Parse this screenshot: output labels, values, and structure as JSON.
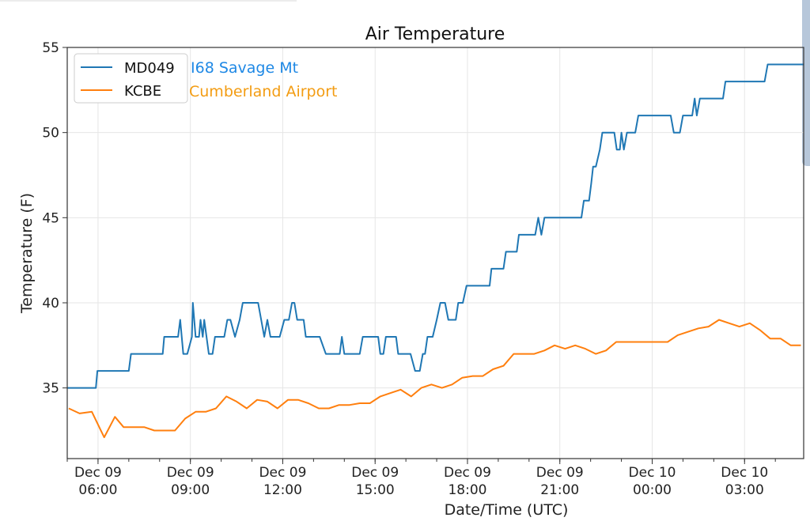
{
  "chart_data": {
    "type": "line",
    "title": "Air Temperature",
    "xlabel": "Date/Time (UTC)",
    "ylabel": "Temperature (F)",
    "x_units": "hours since Dec 09 00:00 UTC",
    "xlim": [
      5.0,
      28.92
    ],
    "ylim": [
      30.85,
      55
    ],
    "grid": true,
    "legend_position": "top-left",
    "yticks": [
      35,
      40,
      45,
      50,
      55
    ],
    "xticks": [
      {
        "x": 6,
        "label_line1": "Dec 09",
        "label_line2": "06:00"
      },
      {
        "x": 9,
        "label_line1": "Dec 09",
        "label_line2": "09:00"
      },
      {
        "x": 12,
        "label_line1": "Dec 09",
        "label_line2": "12:00"
      },
      {
        "x": 15,
        "label_line1": "Dec 09",
        "label_line2": "15:00"
      },
      {
        "x": 18,
        "label_line1": "Dec 09",
        "label_line2": "18:00"
      },
      {
        "x": 21,
        "label_line1": "Dec 09",
        "label_line2": "21:00"
      },
      {
        "x": 24,
        "label_line1": "Dec 10",
        "label_line2": "00:00"
      },
      {
        "x": 27,
        "label_line1": "Dec 10",
        "label_line2": "03:00"
      }
    ],
    "series": [
      {
        "name": "MD049",
        "annotation": "I68 Savage Mt",
        "color": "#1f77b4",
        "annotation_color": "#1e88e5",
        "points": [
          [
            5.0,
            35
          ],
          [
            5.93,
            35
          ],
          [
            5.98,
            36
          ],
          [
            7.0,
            36
          ],
          [
            7.07,
            37
          ],
          [
            8.1,
            37
          ],
          [
            8.15,
            38
          ],
          [
            8.6,
            38
          ],
          [
            8.67,
            39
          ],
          [
            8.77,
            37
          ],
          [
            8.9,
            37
          ],
          [
            9.05,
            38
          ],
          [
            9.08,
            40
          ],
          [
            9.17,
            38
          ],
          [
            9.28,
            38
          ],
          [
            9.33,
            39
          ],
          [
            9.4,
            38
          ],
          [
            9.45,
            39
          ],
          [
            9.6,
            37
          ],
          [
            9.72,
            37
          ],
          [
            9.8,
            38
          ],
          [
            10.1,
            38
          ],
          [
            10.2,
            39
          ],
          [
            10.3,
            39
          ],
          [
            10.45,
            38
          ],
          [
            10.6,
            39
          ],
          [
            10.7,
            40
          ],
          [
            11.2,
            40
          ],
          [
            11.3,
            39
          ],
          [
            11.4,
            38
          ],
          [
            11.5,
            39
          ],
          [
            11.6,
            38
          ],
          [
            11.9,
            38
          ],
          [
            12.05,
            39
          ],
          [
            12.2,
            39
          ],
          [
            12.3,
            40
          ],
          [
            12.38,
            40
          ],
          [
            12.47,
            39
          ],
          [
            12.68,
            39
          ],
          [
            12.75,
            38
          ],
          [
            13.2,
            38
          ],
          [
            13.4,
            37
          ],
          [
            13.85,
            37
          ],
          [
            13.92,
            38
          ],
          [
            14.0,
            37
          ],
          [
            14.5,
            37
          ],
          [
            14.6,
            38
          ],
          [
            15.1,
            38
          ],
          [
            15.17,
            37
          ],
          [
            15.27,
            37
          ],
          [
            15.35,
            38
          ],
          [
            15.68,
            38
          ],
          [
            15.75,
            37
          ],
          [
            16.15,
            37
          ],
          [
            16.3,
            36
          ],
          [
            16.45,
            36
          ],
          [
            16.55,
            37
          ],
          [
            16.62,
            37
          ],
          [
            16.7,
            38
          ],
          [
            16.87,
            38
          ],
          [
            17.0,
            39
          ],
          [
            17.12,
            40
          ],
          [
            17.27,
            40
          ],
          [
            17.38,
            39
          ],
          [
            17.62,
            39
          ],
          [
            17.7,
            40
          ],
          [
            17.85,
            40
          ],
          [
            17.97,
            41
          ],
          [
            18.5,
            41
          ],
          [
            18.72,
            41
          ],
          [
            18.78,
            42
          ],
          [
            19.0,
            42
          ],
          [
            19.17,
            42
          ],
          [
            19.25,
            43
          ],
          [
            19.6,
            43
          ],
          [
            19.67,
            44
          ],
          [
            20.2,
            44
          ],
          [
            20.3,
            45
          ],
          [
            20.4,
            44
          ],
          [
            20.5,
            45
          ],
          [
            21.7,
            45
          ],
          [
            21.78,
            46
          ],
          [
            21.95,
            46
          ],
          [
            22.02,
            47
          ],
          [
            22.08,
            48
          ],
          [
            22.17,
            48
          ],
          [
            22.3,
            49
          ],
          [
            22.38,
            50
          ],
          [
            22.77,
            50
          ],
          [
            22.85,
            49
          ],
          [
            22.95,
            49
          ],
          [
            23.0,
            50
          ],
          [
            23.08,
            49
          ],
          [
            23.18,
            50
          ],
          [
            23.45,
            50
          ],
          [
            23.55,
            51
          ],
          [
            24.6,
            51
          ],
          [
            24.7,
            50
          ],
          [
            24.9,
            50
          ],
          [
            25.0,
            51
          ],
          [
            25.3,
            51
          ],
          [
            25.38,
            52
          ],
          [
            25.45,
            51
          ],
          [
            25.55,
            52
          ],
          [
            26.3,
            52
          ],
          [
            26.38,
            53
          ],
          [
            27.65,
            53
          ],
          [
            27.75,
            54
          ],
          [
            28.92,
            54
          ]
        ]
      },
      {
        "name": "KCBE",
        "annotation": "Cumberland Airport",
        "color": "#ff7f0e",
        "annotation_color": "#f39c12",
        "points": [
          [
            5.05,
            33.8
          ],
          [
            5.4,
            33.5
          ],
          [
            5.8,
            33.6
          ],
          [
            6.2,
            32.1
          ],
          [
            6.55,
            33.3
          ],
          [
            6.83,
            32.7
          ],
          [
            7.5,
            32.7
          ],
          [
            7.83,
            32.5
          ],
          [
            8.5,
            32.5
          ],
          [
            8.83,
            33.2
          ],
          [
            9.17,
            33.6
          ],
          [
            9.5,
            33.6
          ],
          [
            9.83,
            33.8
          ],
          [
            10.17,
            34.5
          ],
          [
            10.5,
            34.2
          ],
          [
            10.83,
            33.8
          ],
          [
            11.17,
            34.3
          ],
          [
            11.5,
            34.2
          ],
          [
            11.83,
            33.8
          ],
          [
            12.17,
            34.3
          ],
          [
            12.5,
            34.3
          ],
          [
            12.83,
            34.1
          ],
          [
            13.17,
            33.8
          ],
          [
            13.5,
            33.8
          ],
          [
            13.83,
            34.0
          ],
          [
            14.17,
            34.0
          ],
          [
            14.5,
            34.1
          ],
          [
            14.83,
            34.1
          ],
          [
            15.17,
            34.5
          ],
          [
            15.5,
            34.7
          ],
          [
            15.83,
            34.9
          ],
          [
            16.17,
            34.5
          ],
          [
            16.5,
            35.0
          ],
          [
            16.83,
            35.2
          ],
          [
            17.17,
            35.0
          ],
          [
            17.5,
            35.2
          ],
          [
            17.83,
            35.6
          ],
          [
            18.17,
            35.7
          ],
          [
            18.5,
            35.7
          ],
          [
            18.83,
            36.1
          ],
          [
            19.17,
            36.3
          ],
          [
            19.5,
            37.0
          ],
          [
            19.83,
            37.0
          ],
          [
            20.17,
            37.0
          ],
          [
            20.5,
            37.2
          ],
          [
            20.83,
            37.5
          ],
          [
            21.17,
            37.3
          ],
          [
            21.5,
            37.5
          ],
          [
            21.83,
            37.3
          ],
          [
            22.17,
            37.0
          ],
          [
            22.5,
            37.2
          ],
          [
            22.83,
            37.7
          ],
          [
            23.17,
            37.7
          ],
          [
            23.5,
            37.7
          ],
          [
            23.83,
            37.7
          ],
          [
            24.17,
            37.7
          ],
          [
            24.5,
            37.7
          ],
          [
            24.83,
            38.1
          ],
          [
            25.17,
            38.3
          ],
          [
            25.5,
            38.5
          ],
          [
            25.83,
            38.6
          ],
          [
            26.17,
            39.0
          ],
          [
            26.5,
            38.8
          ],
          [
            26.83,
            38.6
          ],
          [
            27.17,
            38.8
          ],
          [
            27.5,
            38.4
          ],
          [
            27.83,
            37.9
          ],
          [
            28.17,
            37.9
          ],
          [
            28.5,
            37.5
          ],
          [
            28.83,
            37.5
          ]
        ]
      }
    ]
  }
}
